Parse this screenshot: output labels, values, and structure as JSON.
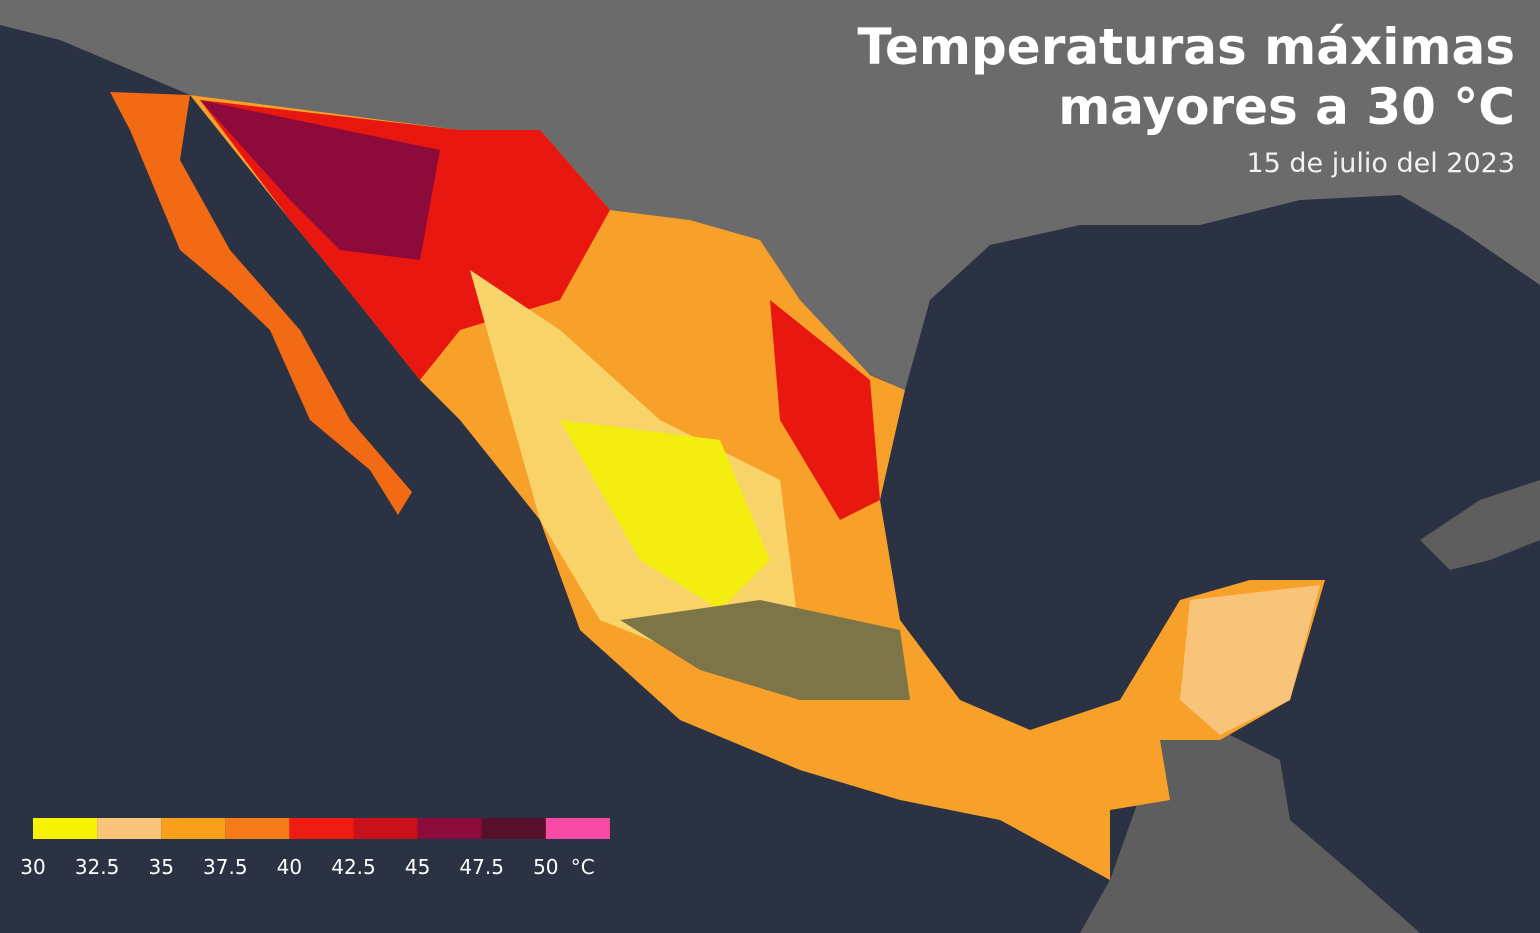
{
  "header": {
    "title_lines": [
      "Temperaturas máximas",
      "mayores a 30 °C"
    ],
    "date": "15 de julio del 2023"
  },
  "legend": {
    "ticks": [
      30,
      32.5,
      35,
      37.5,
      40,
      42.5,
      45,
      47.5,
      50
    ],
    "unit": "°C",
    "colors": [
      "#f7f200",
      "#f8c47a",
      "#f9a11c",
      "#f57b1b",
      "#ee1c12",
      "#c9111b",
      "#8d0b3b",
      "#571029",
      "#f94aa6"
    ]
  }
}
